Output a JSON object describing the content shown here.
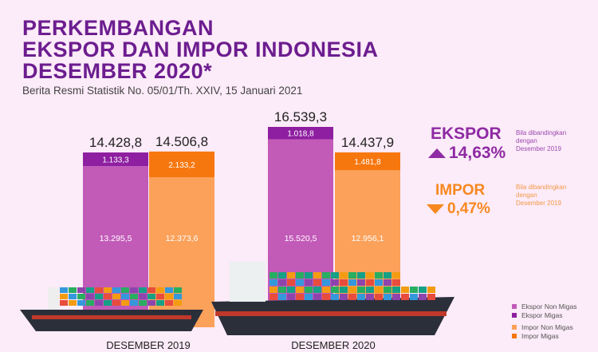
{
  "title": [
    "PERKEMBANGAN",
    "EKSPOR DAN IMPOR INDONESIA",
    "DESEMBER 2020*"
  ],
  "subtitle": "Berita Resmi Statistik No. 05/01/Th. XXIV, 15 Januari 2021",
  "summary": {
    "ekspor": {
      "label": "EKSPOR",
      "change": "14,63%",
      "direction": "up",
      "note": [
        "Bila dibandingkan",
        "dengan",
        "Desember 2019"
      ],
      "color": "#8e2aa3"
    },
    "impor": {
      "label": "IMPOR",
      "change": "0,47%",
      "direction": "down",
      "note": [
        "Bila dibandingkan",
        "dengan",
        "Desember 2019"
      ],
      "color": "#f7881f"
    }
  },
  "chart_data": {
    "type": "bar",
    "stacked": true,
    "categories": [
      "DESEMBER 2019",
      "DESEMBER 2020"
    ],
    "groups": [
      {
        "category": "DESEMBER 2019",
        "ekspor": {
          "total": "14.428,8",
          "non_migas": "13.295,5",
          "migas": "1.133,3",
          "v_non": 13295.5,
          "v_migas": 1133.3
        },
        "impor": {
          "total": "14.506,8",
          "non_migas": "12.373,6",
          "migas": "2.133,2",
          "v_non": 12373.6,
          "v_migas": 2133.2
        }
      },
      {
        "category": "DESEMBER 2020",
        "ekspor": {
          "total": "16.539,3",
          "non_migas": "15.520,5",
          "migas": "1.018,8",
          "v_non": 15520.5,
          "v_migas": 1018.8
        },
        "impor": {
          "total": "14.437,9",
          "non_migas": "12.956,1",
          "migas": "1.481,8",
          "v_non": 12956.1,
          "v_migas": 1481.8
        }
      }
    ],
    "legend": [
      {
        "name": "Ekspor Non Migas",
        "color": "#c25ab8"
      },
      {
        "name": "Ekspor Migas",
        "color": "#8e1fa0"
      },
      {
        "name": "Impor Non Migas",
        "color": "#fba15a"
      },
      {
        "name": "Impor Migas",
        "color": "#f7770f"
      }
    ],
    "legend_position": "bottom-right"
  }
}
